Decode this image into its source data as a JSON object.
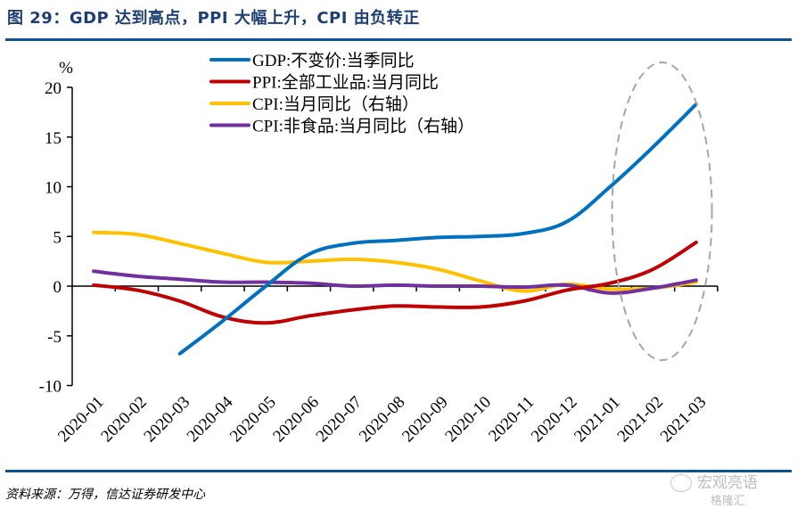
{
  "header": {
    "title": "图 29：GDP 达到高点，PPI 大幅上升，CPI 由负转正"
  },
  "footer": {
    "source": "资料来源：万得，信达证券研发中心",
    "watermark_primary": "宏观亮语",
    "watermark_secondary": "格隆汇"
  },
  "chart_data": {
    "type": "line",
    "title": "GDP 达到高点，PPI 大幅上升，CPI 由负转正",
    "xlabel": "",
    "ylabel": "%",
    "ylim": [
      -10,
      20
    ],
    "yticks": [
      20,
      15,
      10,
      5,
      0,
      -5,
      -10
    ],
    "grid": false,
    "legend_position": "top-center",
    "categories": [
      "2020-01",
      "2020-02",
      "2020-03",
      "2020-04",
      "2020-05",
      "2020-06",
      "2020-07",
      "2020-08",
      "2020-09",
      "2020-10",
      "2020-11",
      "2020-12",
      "2021-01",
      "2021-02",
      "2021-03"
    ],
    "series": [
      {
        "name": "GDP:不变价:当季同比",
        "color": "#0070c0",
        "values": [
          null,
          null,
          -6.8,
          -3.5,
          0.0,
          3.2,
          4.3,
          4.6,
          4.9,
          5.0,
          5.3,
          6.5,
          10.0,
          14.0,
          18.3
        ]
      },
      {
        "name": "PPI:全部工业品:当月同比",
        "color": "#c00000",
        "values": [
          0.1,
          -0.4,
          -1.5,
          -3.1,
          -3.7,
          -3.0,
          -2.4,
          -2.0,
          -2.1,
          -2.1,
          -1.5,
          -0.4,
          0.3,
          1.7,
          4.4
        ]
      },
      {
        "name": "CPI:当月同比（右轴）",
        "color": "#ffc000",
        "values": [
          5.4,
          5.2,
          4.3,
          3.3,
          2.4,
          2.5,
          2.7,
          2.4,
          1.7,
          0.5,
          -0.5,
          0.2,
          -0.3,
          -0.2,
          0.4
        ]
      },
      {
        "name": "CPI:非食品:当月同比（右轴）",
        "color": "#7030a0",
        "values": [
          1.5,
          1.0,
          0.7,
          0.4,
          0.4,
          0.3,
          0.0,
          0.1,
          0.0,
          0.0,
          -0.1,
          0.1,
          -0.7,
          -0.2,
          0.6
        ]
      }
    ],
    "annotations": [
      {
        "type": "dashed-ellipse",
        "highlight": [
          "2021-01",
          "2021-02",
          "2021-03"
        ],
        "color": "#a6a6a6"
      }
    ]
  }
}
